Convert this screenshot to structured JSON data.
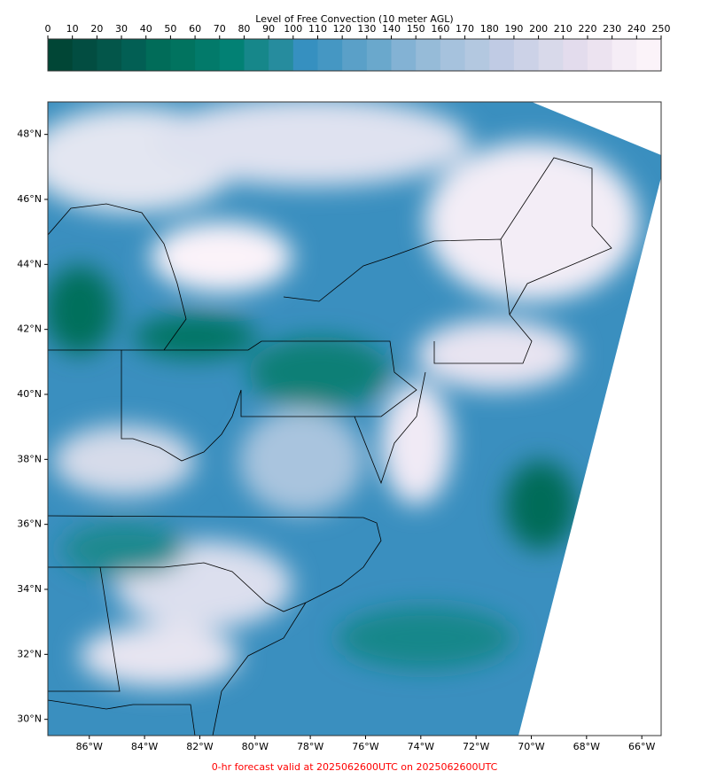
{
  "chart_data": {
    "type": "map",
    "colorbar": {
      "title": "Level of Free Convection (10 meter AGL)",
      "ticks": [
        0,
        10,
        20,
        30,
        40,
        50,
        60,
        70,
        80,
        90,
        100,
        110,
        120,
        130,
        140,
        150,
        160,
        170,
        180,
        190,
        200,
        210,
        220,
        230,
        240,
        250
      ],
      "colors": [
        "#014636",
        "#024d41",
        "#03564a",
        "#025f54",
        "#016c59",
        "#01735f",
        "#027a6a",
        "#028174",
        "#16878a",
        "#268c9e",
        "#3690c0",
        "#4597c3",
        "#5aa0c8",
        "#6aa8cc",
        "#83b2d4",
        "#96bbd8",
        "#a6c2dd",
        "#b3c8e0",
        "#c0cbe4",
        "#ccd2e7",
        "#d8d9ea",
        "#e3dced",
        "#ece3f0",
        "#f5edf6",
        "#fbf3f9"
      ]
    },
    "xlim": [
      -87.5,
      -65.3
    ],
    "ylim": [
      29.5,
      49.0
    ],
    "xticks": [
      {
        "value": -86,
        "label": "86°W"
      },
      {
        "value": -84,
        "label": "84°W"
      },
      {
        "value": -82,
        "label": "82°W"
      },
      {
        "value": -80,
        "label": "80°W"
      },
      {
        "value": -78,
        "label": "78°W"
      },
      {
        "value": -76,
        "label": "76°W"
      },
      {
        "value": -74,
        "label": "74°W"
      },
      {
        "value": -72,
        "label": "72°W"
      },
      {
        "value": -70,
        "label": "70°W"
      },
      {
        "value": -68,
        "label": "68°W"
      },
      {
        "value": -66,
        "label": "66°W"
      }
    ],
    "yticks": [
      {
        "value": 30,
        "label": "30°N"
      },
      {
        "value": 32,
        "label": "32°N"
      },
      {
        "value": 34,
        "label": "34°N"
      },
      {
        "value": 36,
        "label": "36°N"
      },
      {
        "value": 38,
        "label": "38°N"
      },
      {
        "value": 40,
        "label": "40°N"
      },
      {
        "value": 42,
        "label": "42°N"
      },
      {
        "value": 44,
        "label": "44°N"
      },
      {
        "value": 46,
        "label": "46°N"
      },
      {
        "value": 48,
        "label": "48°N"
      }
    ],
    "footer": "0-hr forecast valid at 2025062600UTC on 2025062600UTC",
    "footer_color": "#ff0000"
  }
}
